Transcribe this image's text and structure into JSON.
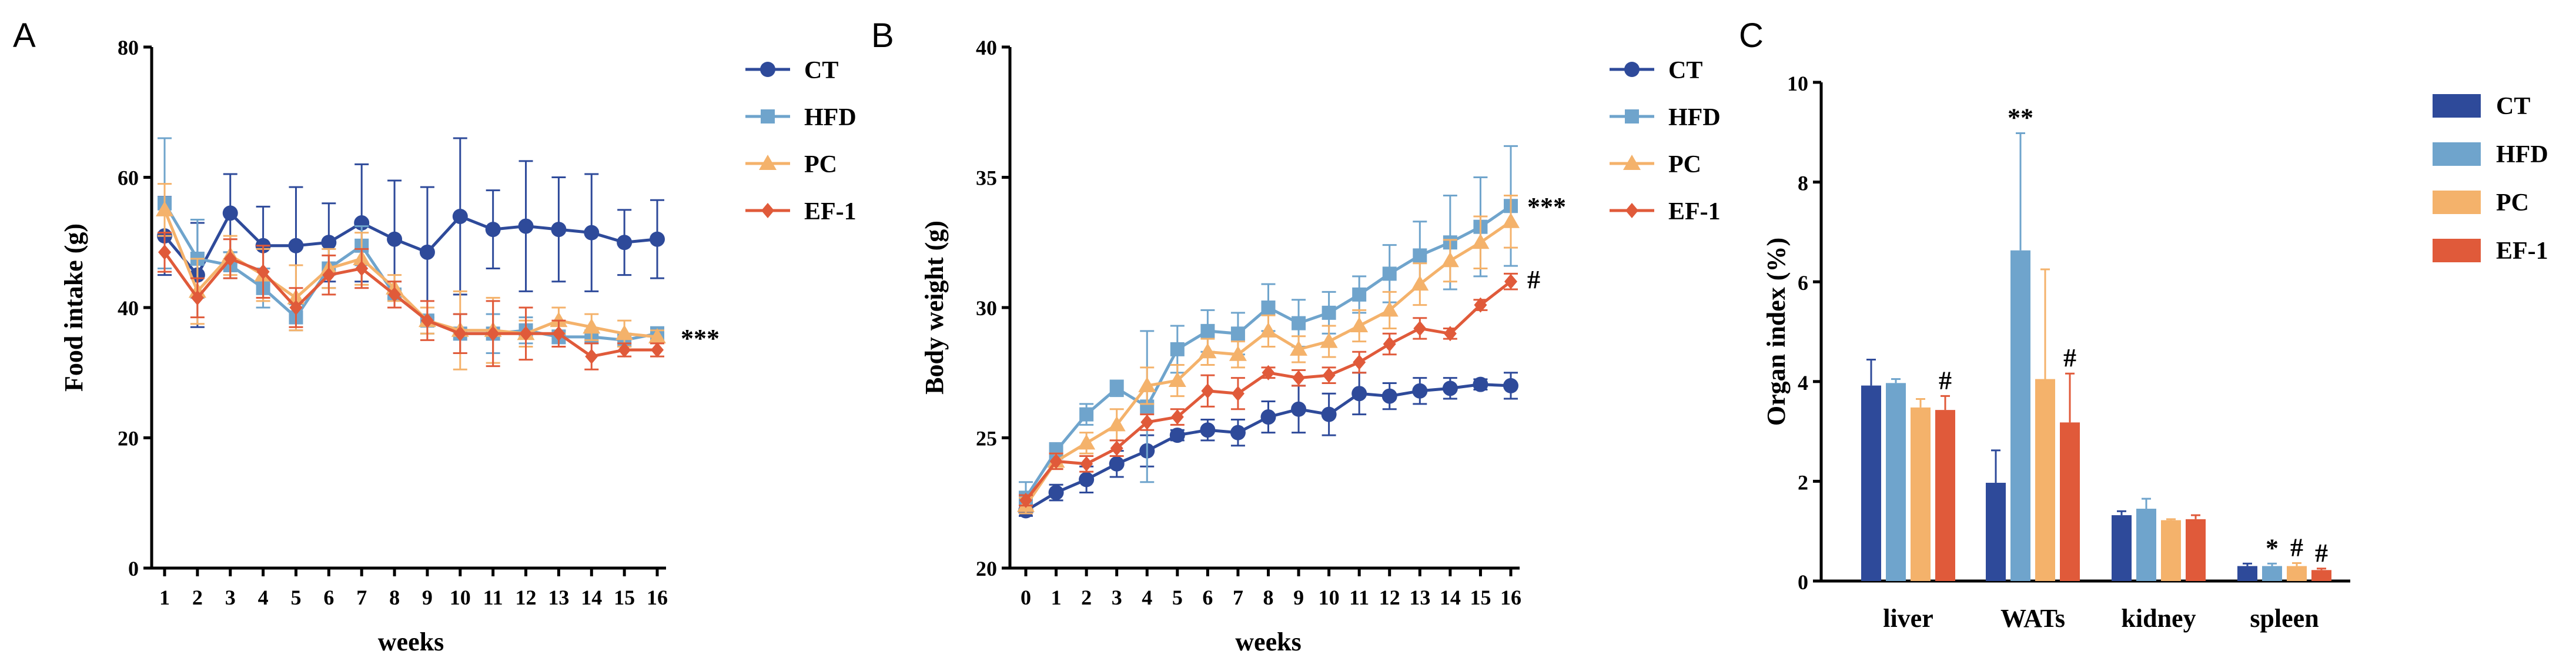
{
  "chart_data": [
    {
      "panel": "A",
      "type": "line",
      "xlabel": "weeks",
      "ylabel": "Food intake (g)",
      "ylim": [
        0,
        80
      ],
      "yticks": [
        0,
        20,
        40,
        60,
        80
      ],
      "x": [
        1,
        2,
        3,
        4,
        5,
        6,
        7,
        8,
        9,
        10,
        11,
        12,
        13,
        14,
        15,
        16
      ],
      "legend_position": "top-right",
      "significance": "***",
      "series": [
        {
          "name": "CT",
          "color": "#2E4A9A",
          "marker": "circle",
          "values": [
            51,
            45,
            54.5,
            49.5,
            49.5,
            50,
            53,
            50.5,
            48.5,
            54,
            52,
            52.5,
            52,
            51.5,
            50,
            50.5
          ],
          "errors": [
            6,
            8,
            6,
            6,
            9,
            6,
            9,
            9,
            10,
            12,
            6,
            10,
            8,
            9,
            5,
            6
          ]
        },
        {
          "name": "HFD",
          "color": "#6FA4CC",
          "marker": "square",
          "values": [
            56,
            47.5,
            46.5,
            43,
            38.5,
            46,
            49.5,
            42,
            38,
            36,
            36,
            36.5,
            35.5,
            35.5,
            35,
            36
          ],
          "errors": [
            10,
            6,
            2,
            3,
            2,
            3,
            3,
            2,
            2,
            3,
            3,
            2,
            1,
            1,
            1,
            1
          ]
        },
        {
          "name": "PC",
          "color": "#F4B26B",
          "marker": "triangle",
          "values": [
            55,
            42.5,
            48,
            45,
            41.5,
            46,
            47.5,
            43,
            38,
            36.5,
            36.5,
            36,
            38,
            37,
            36,
            35.5
          ],
          "errors": [
            4,
            5,
            3,
            4,
            5,
            3,
            4,
            2,
            2,
            6,
            5,
            2,
            2,
            2,
            2,
            1
          ]
        },
        {
          "name": "EF-1",
          "color": "#E05A3A",
          "marker": "diamond",
          "values": [
            48.5,
            41.5,
            47.5,
            45.5,
            40,
            45,
            46,
            42,
            38,
            36,
            36,
            36,
            36,
            32.5,
            33.5,
            33.5
          ],
          "errors": [
            3,
            3,
            3,
            4,
            3,
            3,
            3,
            2,
            3,
            3,
            5,
            4,
            2,
            2,
            1,
            1
          ]
        }
      ]
    },
    {
      "panel": "B",
      "type": "line",
      "xlabel": "weeks",
      "ylabel": "Body weight (g)",
      "ylim": [
        20,
        40
      ],
      "yticks": [
        20,
        25,
        30,
        35,
        40
      ],
      "x": [
        0,
        1,
        2,
        3,
        4,
        5,
        6,
        7,
        8,
        9,
        10,
        11,
        12,
        13,
        14,
        15,
        16
      ],
      "legend_position": "top-right",
      "significance": [
        "***",
        "#"
      ],
      "series": [
        {
          "name": "CT",
          "color": "#2E4A9A",
          "marker": "circle",
          "values": [
            22.2,
            22.9,
            23.4,
            24,
            24.5,
            25.1,
            25.3,
            25.2,
            25.8,
            26.1,
            25.9,
            26.7,
            26.6,
            26.8,
            26.9,
            27.05,
            27
          ],
          "errors": [
            0.2,
            0.3,
            0.5,
            0.5,
            0.6,
            0.2,
            0.4,
            0.5,
            0.6,
            0.9,
            0.8,
            0.8,
            0.5,
            0.5,
            0.4,
            0.2,
            0.5
          ]
        },
        {
          "name": "HFD",
          "color": "#6FA4CC",
          "marker": "square",
          "values": [
            22.7,
            24.5,
            25.9,
            26.9,
            26.2,
            28.4,
            29.1,
            29,
            30,
            29.4,
            29.8,
            30.5,
            31.3,
            32,
            32.5,
            33.1,
            33.9
          ],
          "errors": [
            0.6,
            0.3,
            0.4,
            0.3,
            2.9,
            0.9,
            0.8,
            0.8,
            0.9,
            0.9,
            0.8,
            0.7,
            1.1,
            1.3,
            1.8,
            1.9,
            2.3
          ]
        },
        {
          "name": "PC",
          "color": "#F4B26B",
          "marker": "triangle",
          "values": [
            22.4,
            24.1,
            24.8,
            25.5,
            27,
            27.2,
            28.3,
            28.2,
            29.1,
            28.4,
            28.7,
            29.3,
            29.9,
            30.9,
            31.8,
            32.5,
            33.3
          ],
          "errors": [
            0.3,
            0.3,
            0.4,
            0.6,
            0.7,
            0.6,
            0.5,
            0.5,
            0.6,
            0.5,
            0.6,
            0.6,
            0.7,
            0.8,
            0.8,
            1,
            1
          ]
        },
        {
          "name": "EF-1",
          "color": "#E05A3A",
          "marker": "diamond",
          "values": [
            22.6,
            24.1,
            24,
            24.6,
            25.6,
            25.8,
            26.8,
            26.7,
            27.5,
            27.3,
            27.4,
            27.9,
            28.6,
            29.2,
            29,
            30.1,
            31
          ],
          "errors": [
            0.2,
            0.3,
            0.3,
            0.3,
            0.3,
            0.3,
            0.6,
            0.6,
            0.2,
            0.3,
            0.3,
            0.4,
            0.4,
            0.4,
            0.2,
            0.2,
            0.3
          ]
        }
      ]
    },
    {
      "panel": "C",
      "type": "bar",
      "ylabel": "Organ index (%)",
      "ylim": [
        0,
        10
      ],
      "yticks": [
        0,
        2,
        4,
        6,
        8,
        10
      ],
      "categories": [
        "liver",
        "WATs",
        "kidney",
        "spleen"
      ],
      "legend_position": "top-right",
      "series": [
        {
          "name": "CT",
          "color": "#2E4A9A",
          "values": [
            3.92,
            1.97,
            1.32,
            0.3
          ],
          "errors": [
            0.52,
            0.65,
            0.08,
            0.05
          ],
          "marks": [
            "",
            "",
            "",
            ""
          ]
        },
        {
          "name": "HFD",
          "color": "#6FA4CC",
          "values": [
            3.97,
            6.63,
            1.45,
            0.3
          ],
          "errors": [
            0.08,
            2.35,
            0.2,
            0.05
          ],
          "marks": [
            "",
            "**",
            "",
            "*"
          ]
        },
        {
          "name": "PC",
          "color": "#F4B26B",
          "values": [
            3.48,
            4.05,
            1.22,
            0.3
          ],
          "errors": [
            0.17,
            2.2,
            0.02,
            0.06
          ],
          "marks": [
            "",
            "",
            "",
            "#"
          ]
        },
        {
          "name": "EF-1",
          "color": "#E05A3A",
          "values": [
            3.43,
            3.18,
            1.24,
            0.22
          ],
          "errors": [
            0.28,
            0.98,
            0.08,
            0.03
          ],
          "marks": [
            "#",
            "#",
            "",
            "#"
          ]
        }
      ]
    }
  ]
}
